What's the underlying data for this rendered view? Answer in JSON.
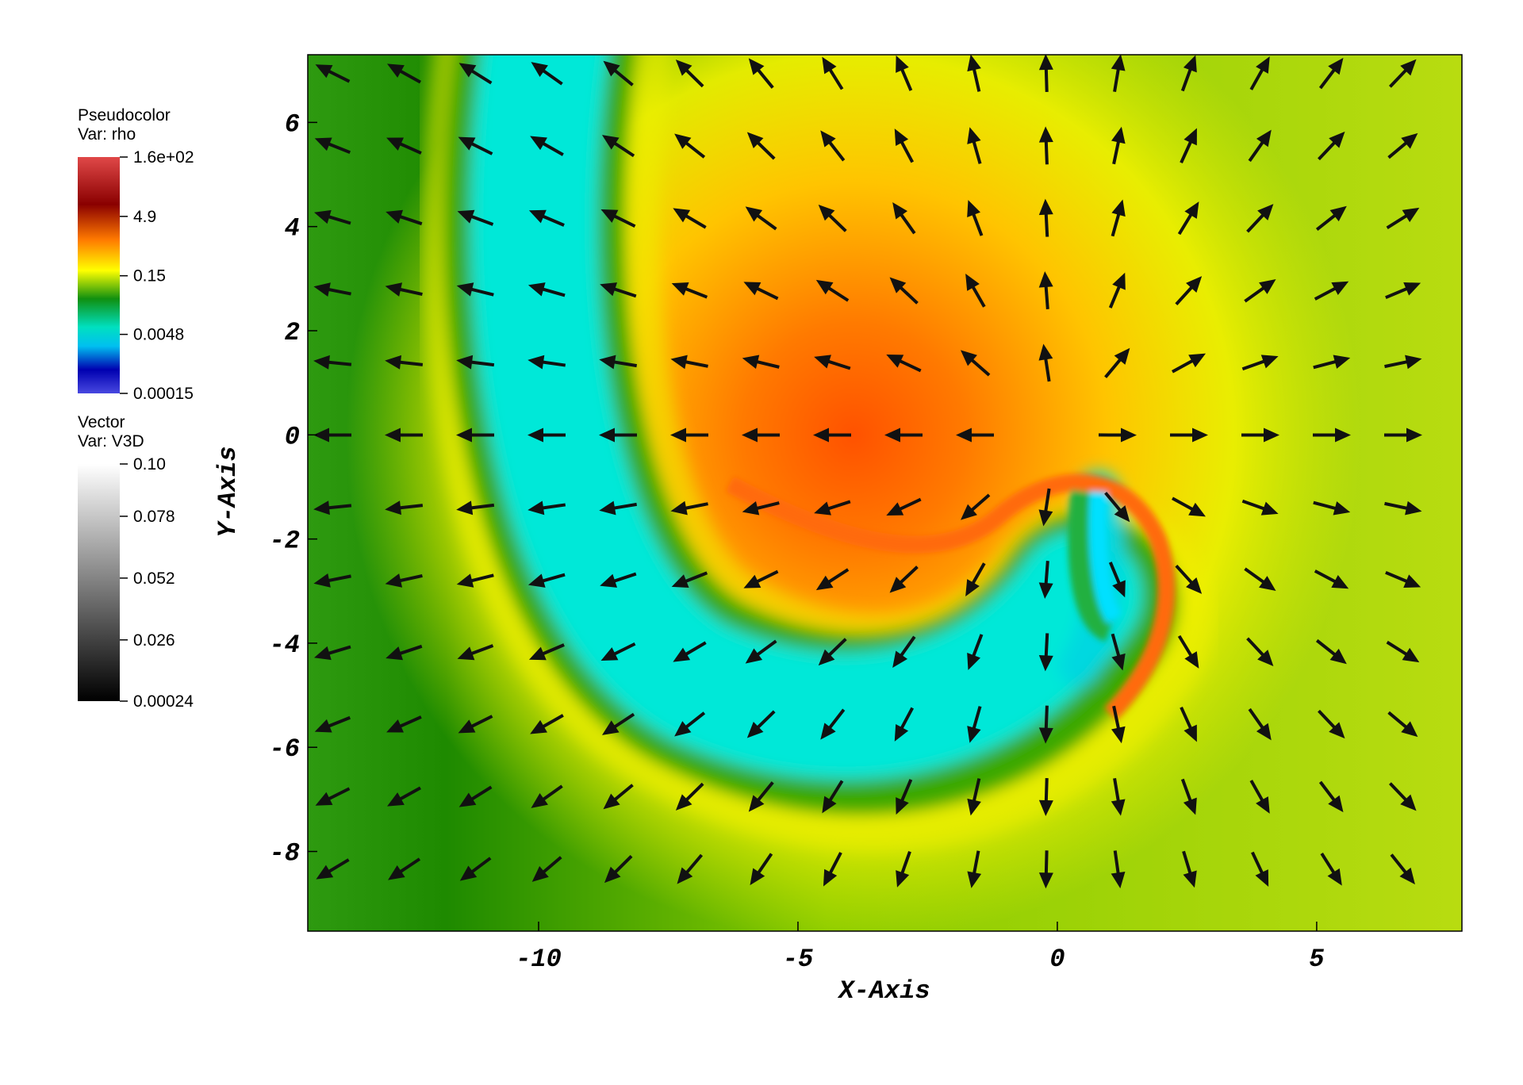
{
  "chart_data": {
    "type": "pseudocolor",
    "xlabel": "X-Axis",
    "ylabel": "Y-Axis",
    "xlim": [
      -14.45,
      7.8
    ],
    "ylim": [
      -9.53,
      7.3
    ],
    "xticks": [
      -10,
      -5,
      0,
      5
    ],
    "yticks": [
      -8,
      -6,
      -4,
      -2,
      0,
      2,
      4,
      6
    ],
    "legends": [
      {
        "title": "Pseudocolor",
        "variable": "Var: rho",
        "scale": "log",
        "ticks": [
          {
            "value": 160,
            "label": "1.6e+02"
          },
          4.9,
          0.15,
          0.0048,
          0.00015
        ]
      },
      {
        "title": "Vector",
        "variable": "Var: V3D",
        "scale": "linear",
        "ticks": [
          {
            "value": 0.1,
            "label": "0.10"
          },
          0.078,
          0.052,
          0.026,
          0.00024
        ]
      }
    ]
  }
}
